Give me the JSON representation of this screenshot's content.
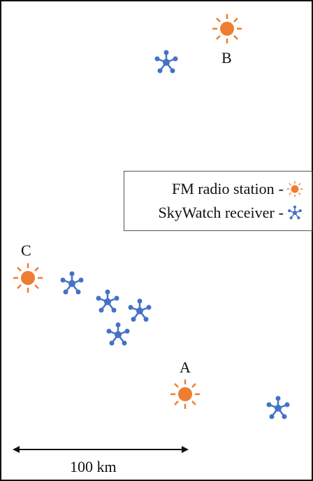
{
  "labels": {
    "A": "A",
    "B": "B",
    "C": "C"
  },
  "legend": {
    "station": "FM radio station",
    "receiver": "SkyWatch receiver",
    "separator": "-"
  },
  "scale": {
    "label": "100 km"
  },
  "icons": {
    "station": "fm-station-sun-icon",
    "receiver": "skywatch-receiver-icon"
  },
  "colors": {
    "station": "#ee7d31",
    "receiver": "#4472c4",
    "line": "#111111"
  }
}
